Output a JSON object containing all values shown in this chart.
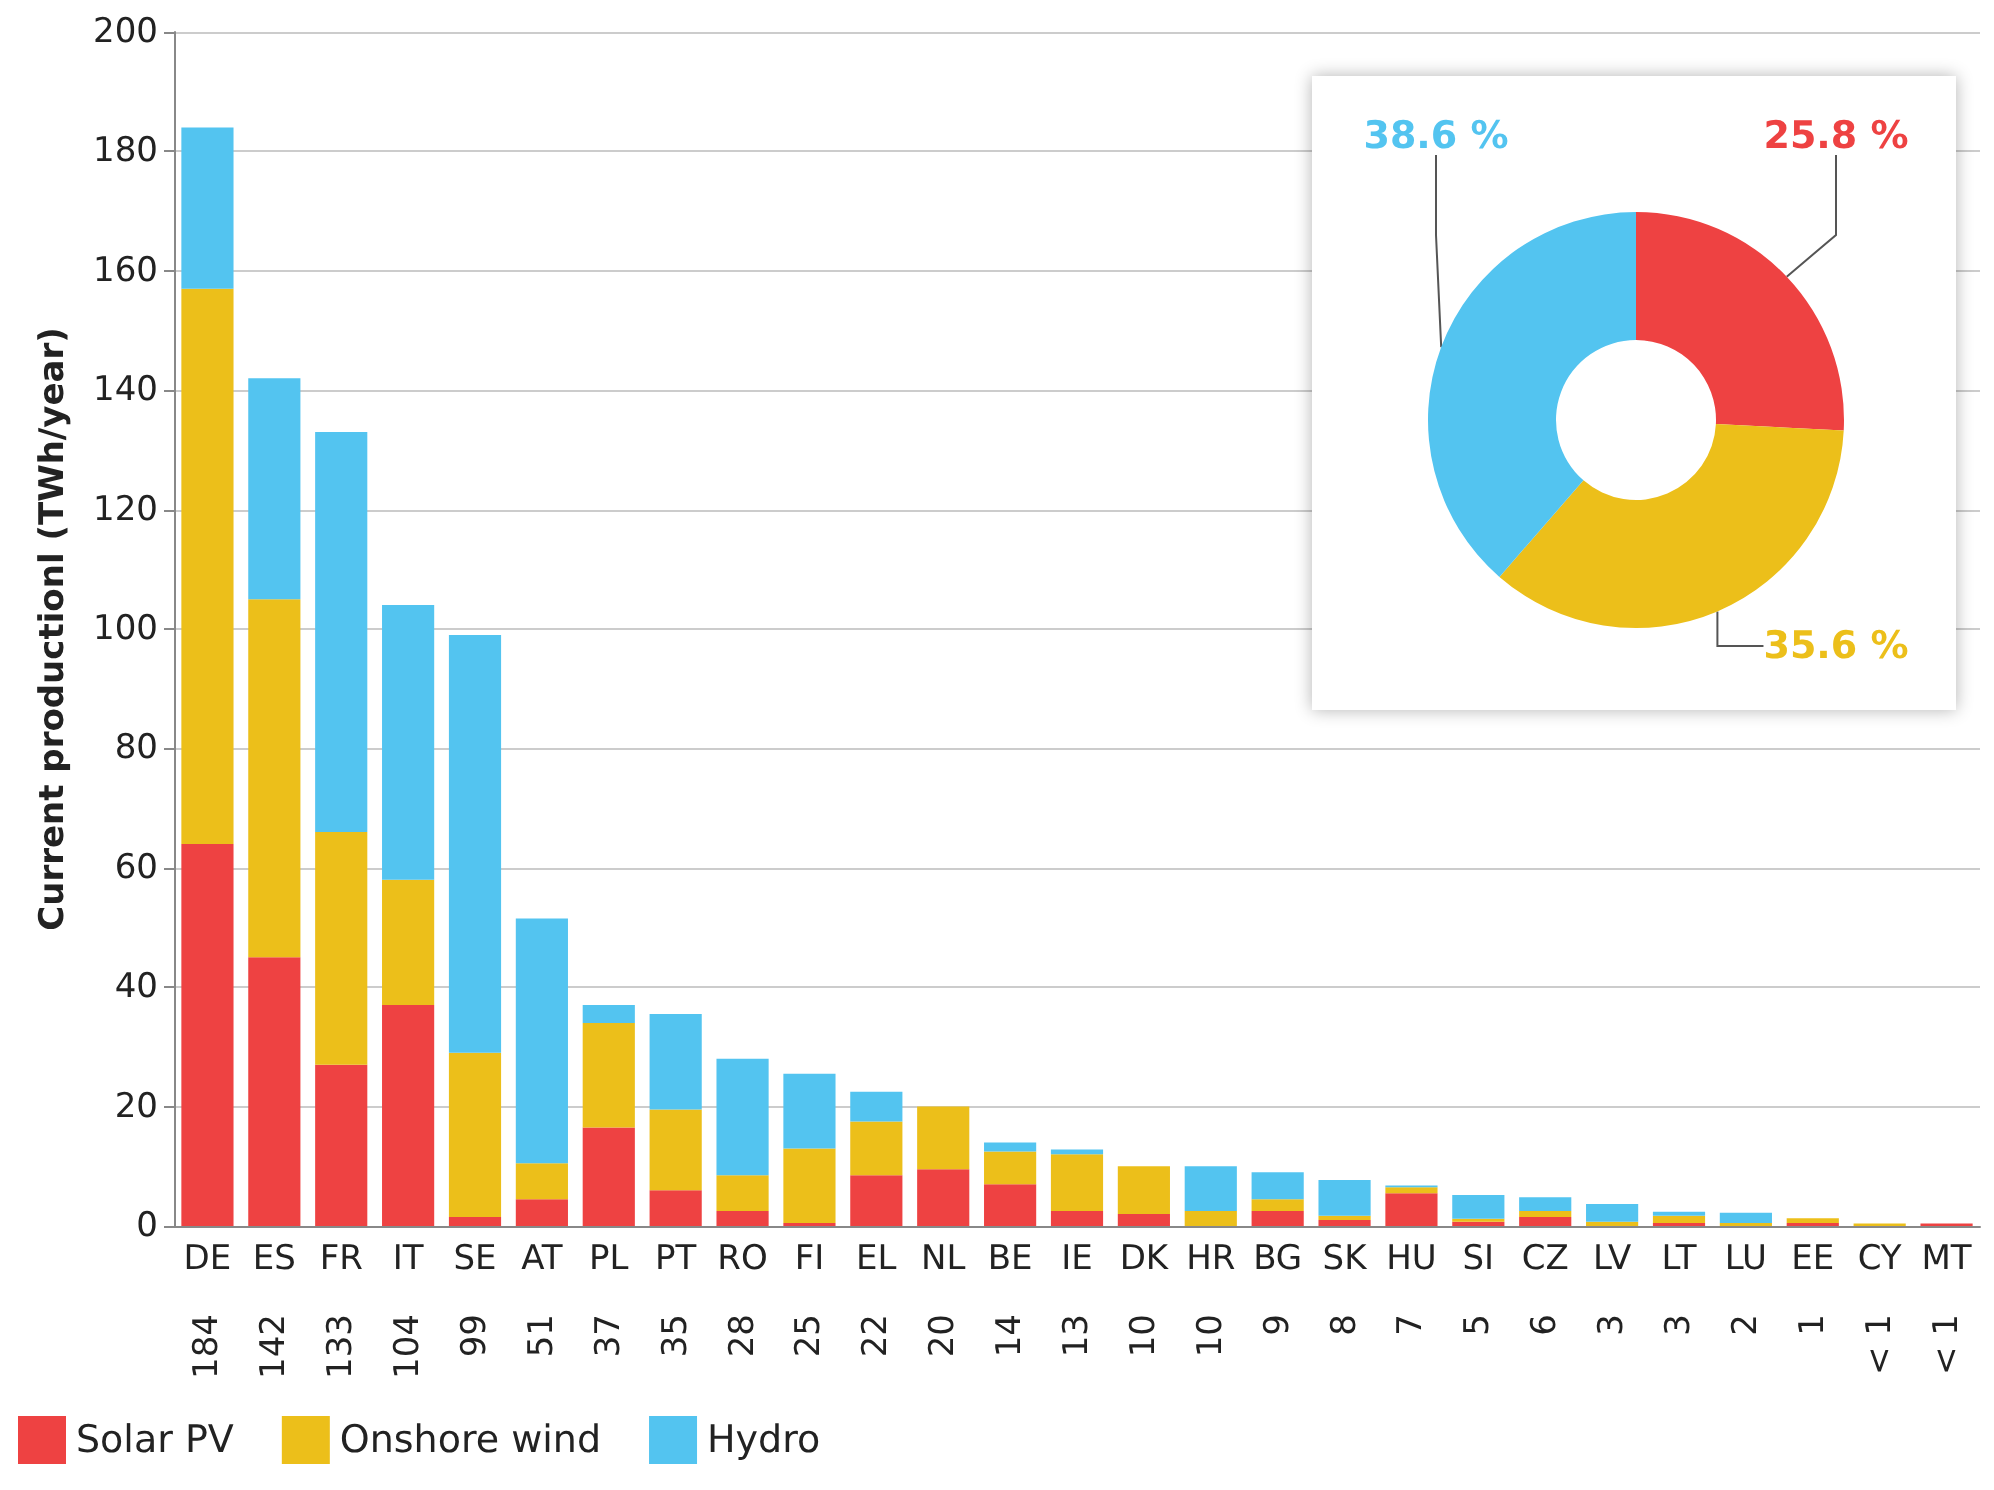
{
  "chart_data": [
    {
      "type": "bar",
      "stacked": true,
      "ylabel": "Current productionl (TWh/year)",
      "categories": [
        "DE",
        "ES",
        "FR",
        "IT",
        "SE",
        "AT",
        "PL",
        "PT",
        "RO",
        "FI",
        "EL",
        "NL",
        "BE",
        "IE",
        "DK",
        "HR",
        "BG",
        "SK",
        "HU",
        "SI",
        "CZ",
        "LV",
        "LT",
        "LU",
        "EE",
        "CY",
        "MT"
      ],
      "totals": [
        "184",
        "142",
        "133",
        "104",
        "99",
        "51",
        "37",
        "35",
        "28",
        "25",
        "22",
        "20",
        "14",
        "13",
        "10",
        "10",
        "9",
        "8",
        "7",
        "5",
        "6",
        "3",
        "3",
        "2",
        "1",
        "< 1",
        "< 1"
      ],
      "series": [
        {
          "name": "Solar PV",
          "color": "#ee4242",
          "values": [
            64,
            45,
            27,
            37,
            1.5,
            4.5,
            16.5,
            6,
            2.5,
            0.5,
            8.5,
            9.5,
            7,
            2.5,
            2,
            0,
            2.5,
            1,
            5.5,
            0.7,
            1.5,
            0,
            0.5,
            0,
            0.5,
            0,
            0.4
          ]
        },
        {
          "name": "Onshore wind",
          "color": "#ecbf1a",
          "values": [
            93,
            60,
            39,
            21,
            27.5,
            6,
            17.5,
            13.5,
            6,
            12.5,
            9,
            10.5,
            5.5,
            9.5,
            8,
            2.5,
            2,
            0.7,
            1,
            0.5,
            1,
            0.7,
            1.2,
            0.5,
            0.8,
            0.4,
            0
          ]
        },
        {
          "name": "Hydro",
          "color": "#53c4f0",
          "values": [
            27,
            37,
            67,
            46,
            70,
            41,
            3,
            16,
            19.5,
            12.5,
            5,
            0,
            1.5,
            0.8,
            0,
            7.5,
            4.5,
            6,
            0.3,
            4,
            2.3,
            3,
            0.7,
            1.7,
            0,
            0,
            0
          ]
        }
      ],
      "ylim": [
        0,
        200
      ],
      "yticks": [
        0,
        20,
        40,
        60,
        80,
        100,
        120,
        140,
        160,
        180,
        200
      ],
      "grid": "y",
      "legend": "bottom left"
    },
    {
      "type": "donut",
      "values": [
        25.8,
        35.6,
        38.6
      ],
      "colors": [
        "#ee4242",
        "#ecbf1a",
        "#53c4f0"
      ],
      "value_labels": [
        "25.8 %",
        "35.6 %",
        "38.6 %"
      ]
    }
  ]
}
